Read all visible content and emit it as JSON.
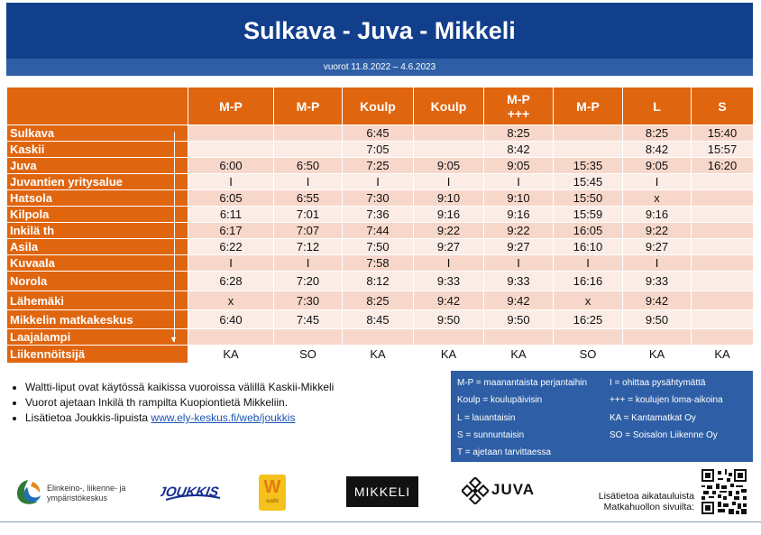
{
  "title": "Sulkava - Juva - Mikkeli",
  "subtitle": "vuorot 11.8.2022 – 4.6.2023",
  "table": {
    "headers": [
      "M-P",
      "M-P",
      "Koulp",
      "Koulp",
      "M-P\n+++",
      "M-P",
      "L",
      "S"
    ],
    "rows": [
      {
        "stop": "Sulkava",
        "times": [
          "",
          "",
          "6:45",
          "",
          "8:25",
          "",
          "8:25",
          "15:40"
        ]
      },
      {
        "stop": "Kaskii",
        "times": [
          "",
          "",
          "7:05",
          "",
          "8:42",
          "",
          "8:42",
          "15:57"
        ]
      },
      {
        "stop": "Juva",
        "times": [
          "6:00",
          "6:50",
          "7:25",
          "9:05",
          "9:05",
          "15:35",
          "9:05",
          "16:20"
        ]
      },
      {
        "stop": "Juvantien yritysalue",
        "times": [
          "I",
          "I",
          "I",
          "I",
          "I",
          "15:45",
          "I",
          ""
        ]
      },
      {
        "stop": "Hatsola",
        "times": [
          "6:05",
          "6:55",
          "7:30",
          "9:10",
          "9:10",
          "15:50",
          "x",
          ""
        ]
      },
      {
        "stop": "Kilpola",
        "times": [
          "6:11",
          "7:01",
          "7:36",
          "9:16",
          "9:16",
          "15:59",
          "9:16",
          ""
        ]
      },
      {
        "stop": "Inkilä th",
        "times": [
          "6:17",
          "7:07",
          "7:44",
          "9:22",
          "9:22",
          "16:05",
          "9:22",
          ""
        ]
      },
      {
        "stop": "Asila",
        "times": [
          "6:22",
          "7:12",
          "7:50",
          "9:27",
          "9:27",
          "16:10",
          "9:27",
          ""
        ]
      },
      {
        "stop": "Kuvaala",
        "times": [
          "I",
          "I",
          "7:58",
          "I",
          "I",
          "I",
          "I",
          ""
        ]
      },
      {
        "stop": "Norola",
        "times": [
          "6:28",
          "7:20",
          "8:12",
          "9:33",
          "9:33",
          "16:16",
          "9:33",
          ""
        ]
      },
      {
        "stop": "Lähemäki",
        "times": [
          "x",
          "7:30",
          "8:25",
          "9:42",
          "9:42",
          "x",
          "9:42",
          ""
        ]
      },
      {
        "stop": "Mikkelin matkakeskus",
        "times": [
          "6:40",
          "7:45",
          "8:45",
          "9:50",
          "9:50",
          "16:25",
          "9:50",
          ""
        ]
      },
      {
        "stop": "Laajalampi",
        "times": [
          "",
          "",
          "",
          "",
          "",
          "",
          "",
          ""
        ]
      }
    ],
    "operators_label": "Liikennöitsijä",
    "operators": [
      "KA",
      "SO",
      "KA",
      "KA",
      "KA",
      "SO",
      "KA",
      "KA"
    ]
  },
  "notes": [
    "Waltti-liput ovat käytössä kaikissa vuoroissa välillä Kaskii-Mikkeli",
    "Vuorot ajetaan Inkilä th rampilta Kuopiontietä Mikkeliin."
  ],
  "note_link_prefix": "Lisätietoa Joukkis-lipuista ",
  "note_link": "www.ely-keskus.fi/web/joukkis",
  "legend": [
    "M-P = maanantaista perjantaihin",
    "I = ohittaa pysähtymättä",
    "Koulp = koulupäivisin",
    "+++ = koulujen loma-aikoina",
    "L = lauantaisin",
    "KA = Kantamatkat Oy",
    "S = sunnuntaisin",
    "SO = Soisalon Liikenne Oy",
    "T = ajetaan tarvittaessa"
  ],
  "logos": {
    "ely_text": "Elinkeino-, liikenne- ja ympäristökeskus",
    "joukkis": "JOUKKIS",
    "waltti_letter": "W",
    "waltti_sub": "waltti",
    "mikkeli": "MIKKELI",
    "juva": "JUVA"
  },
  "info_text": "Lisätietoa aikatauluista Matkahuollon sivuilta:",
  "colors": {
    "title_bg": "#123f8c",
    "subtitle_bg": "#2e5fa6",
    "header_orange": "#e0650f",
    "row_pink": "#f7d7ca",
    "row_light": "#fbece6"
  }
}
